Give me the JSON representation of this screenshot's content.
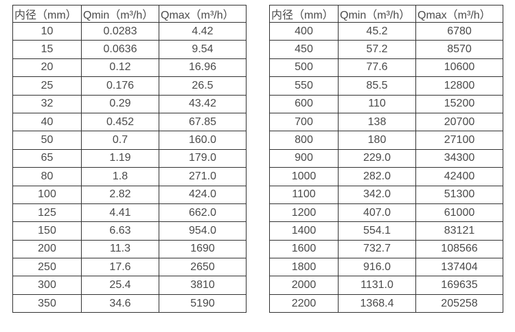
{
  "colors": {
    "border": "#333333",
    "text": "#4a4a4a",
    "background": "#ffffff"
  },
  "tables": [
    {
      "name": "flow-rate-table-small-diameters",
      "headers": [
        "内径（mm）",
        "Qmin（m³/h）",
        "Qmax（m³/h）"
      ],
      "rows": [
        [
          "10",
          "0.0283",
          "4.42"
        ],
        [
          "15",
          "0.0636",
          "9.54"
        ],
        [
          "20",
          "0.12",
          "16.96"
        ],
        [
          "25",
          "0.176",
          "26.5"
        ],
        [
          "32",
          "0.29",
          "43.42"
        ],
        [
          "40",
          "0.452",
          "67.85"
        ],
        [
          "50",
          "0.7",
          "160.0"
        ],
        [
          "65",
          "1.19",
          "179.0"
        ],
        [
          "80",
          "1.8",
          "271.0"
        ],
        [
          "100",
          "2.82",
          "424.0"
        ],
        [
          "125",
          "4.41",
          "662.0"
        ],
        [
          "150",
          "6.63",
          "954.0"
        ],
        [
          "200",
          "11.3",
          "1690"
        ],
        [
          "250",
          "17.6",
          "2650"
        ],
        [
          "300",
          "25.4",
          "3810"
        ],
        [
          "350",
          "34.6",
          "5190"
        ]
      ]
    },
    {
      "name": "flow-rate-table-large-diameters",
      "headers": [
        "内径（mm）",
        "Qmin（m³/h）",
        "Qmax（m³/h）"
      ],
      "rows": [
        [
          "400",
          "45.2",
          "6780"
        ],
        [
          "450",
          "57.2",
          "8570"
        ],
        [
          "500",
          "77.6",
          "10600"
        ],
        [
          "550",
          "85.5",
          "12800"
        ],
        [
          "600",
          "110",
          "15200"
        ],
        [
          "700",
          "138",
          "20700"
        ],
        [
          "800",
          "180",
          "27100"
        ],
        [
          "900",
          "229.0",
          "34300"
        ],
        [
          "1000",
          "282.0",
          "42400"
        ],
        [
          "1100",
          "342.0",
          "51300"
        ],
        [
          "1200",
          "407.0",
          "61000"
        ],
        [
          "1400",
          "554.1",
          "83121"
        ],
        [
          "1600",
          "732.7",
          "108566"
        ],
        [
          "1800",
          "916.0",
          "137404"
        ],
        [
          "2000",
          "1131.0",
          "169635"
        ],
        [
          "2200",
          "1368.4",
          "205258"
        ]
      ]
    }
  ]
}
